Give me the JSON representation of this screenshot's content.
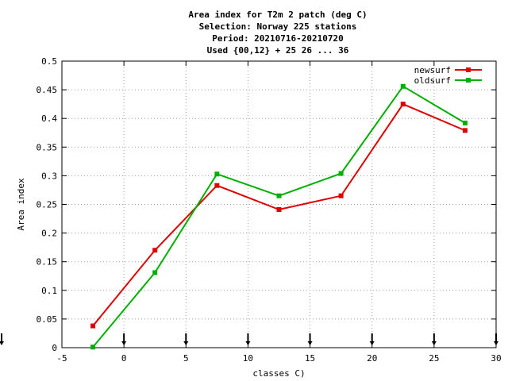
{
  "chart_data": {
    "type": "line",
    "title_lines": [
      "Area index  for T2m 2 patch (deg C)",
      "Selection: Norway    225 stations",
      "Period: 20210716-20210720",
      "Used {00,12} + 25 26 ... 36"
    ],
    "xlabel": "classes C)",
    "ylabel": "Area index",
    "xlim": [
      -5,
      30
    ],
    "ylim": [
      0,
      0.5
    ],
    "xticks": [
      -5,
      0,
      5,
      10,
      15,
      20,
      25,
      30
    ],
    "xtick_labels": [
      "-5",
      "0",
      "5",
      "10",
      "15",
      "20",
      "25",
      "30"
    ],
    "yticks": [
      0,
      0.05,
      0.1,
      0.15,
      0.2,
      0.25,
      0.3,
      0.35,
      0.4,
      0.45,
      0.5
    ],
    "ytick_labels": [
      "0",
      "0.05",
      "0.1",
      "0.15",
      "0.2",
      "0.25",
      "0.3",
      "0.35",
      "0.4",
      "0.45",
      "0.5"
    ],
    "grid": true,
    "legend_position": "top-right",
    "class_markers_x": [
      -5,
      0,
      5,
      10,
      15,
      20,
      25,
      30
    ],
    "series": [
      {
        "name": "newsurf",
        "color": "#e00000",
        "x": [
          -2.5,
          2.5,
          7.5,
          12.5,
          17.5,
          22.5,
          27.5
        ],
        "y": [
          0.038,
          0.17,
          0.283,
          0.241,
          0.265,
          0.425,
          0.379
        ]
      },
      {
        "name": "oldsurf",
        "color": "#00b000",
        "x": [
          -2.5,
          2.5,
          7.5,
          12.5,
          17.5,
          22.5,
          27.5
        ],
        "y": [
          0.001,
          0.131,
          0.303,
          0.265,
          0.304,
          0.456,
          0.392
        ]
      }
    ]
  }
}
